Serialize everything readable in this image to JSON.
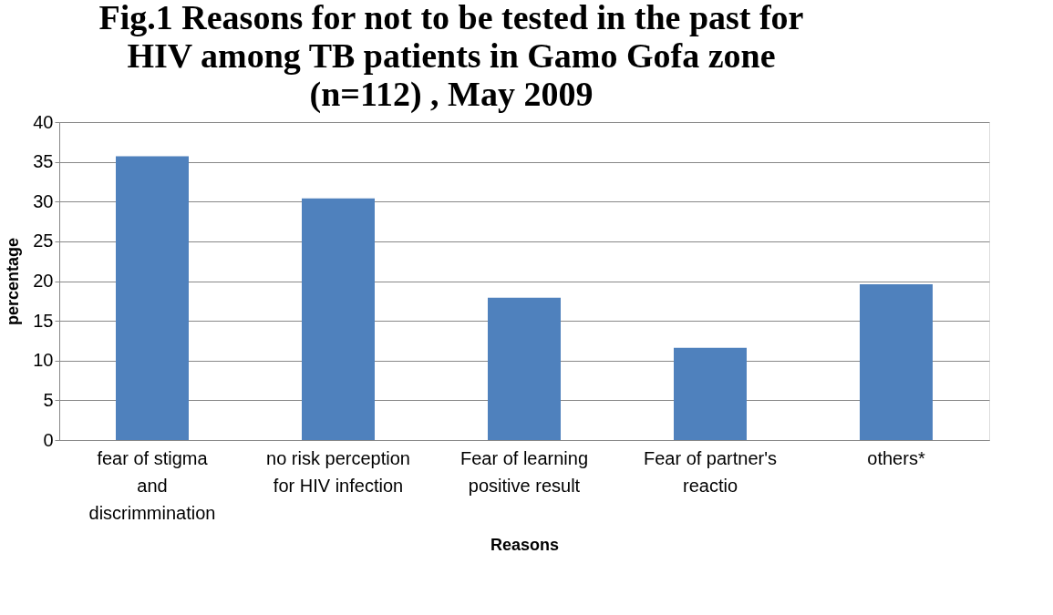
{
  "chart_data": {
    "type": "bar",
    "title": "Fig.1 Reasons for not to be tested in the past for\nHIV among TB patients in Gamo Gofa zone\n(n=112) , May 2009",
    "xlabel": "Reasons",
    "ylabel": "percentage",
    "categories": [
      "fear of stigma\nand\ndiscrimmination",
      "no risk perception\nfor HIV infection",
      "Fear of learning\npositive result",
      "Fear of partner's\nreactio",
      "others*"
    ],
    "values": [
      35.7,
      30.4,
      17.9,
      11.6,
      19.6
    ],
    "color": "#4f81bd",
    "ylim": [
      0,
      40
    ],
    "yticks": [
      0,
      5,
      10,
      15,
      20,
      25,
      30,
      35,
      40
    ],
    "grid": "y"
  }
}
